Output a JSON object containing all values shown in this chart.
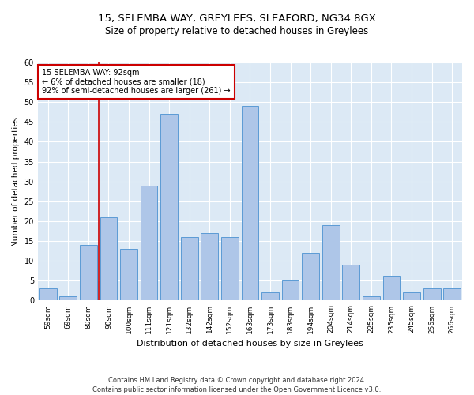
{
  "title1": "15, SELEMBA WAY, GREYLEES, SLEAFORD, NG34 8GX",
  "title2": "Size of property relative to detached houses in Greylees",
  "xlabel": "Distribution of detached houses by size in Greylees",
  "ylabel": "Number of detached properties",
  "footnote1": "Contains HM Land Registry data © Crown copyright and database right 2024.",
  "footnote2": "Contains public sector information licensed under the Open Government Licence v3.0.",
  "categories": [
    "59sqm",
    "69sqm",
    "80sqm",
    "90sqm",
    "100sqm",
    "111sqm",
    "121sqm",
    "132sqm",
    "142sqm",
    "152sqm",
    "163sqm",
    "173sqm",
    "183sqm",
    "194sqm",
    "204sqm",
    "214sqm",
    "225sqm",
    "235sqm",
    "245sqm",
    "256sqm",
    "266sqm"
  ],
  "values": [
    3,
    1,
    14,
    21,
    13,
    29,
    47,
    16,
    17,
    16,
    49,
    2,
    5,
    12,
    19,
    9,
    1,
    6,
    2,
    3,
    3
  ],
  "bar_color": "#aec6e8",
  "bar_edge_color": "#5b9bd5",
  "bg_color": "#dce9f5",
  "annotation_text": "15 SELEMBA WAY: 92sqm\n← 6% of detached houses are smaller (18)\n92% of semi-detached houses are larger (261) →",
  "annotation_box_color": "#ffffff",
  "annotation_border_color": "#cc0000",
  "vline_color": "#cc0000",
  "vline_x_index": 3,
  "ylim": [
    0,
    60
  ],
  "yticks": [
    0,
    5,
    10,
    15,
    20,
    25,
    30,
    35,
    40,
    45,
    50,
    55,
    60
  ]
}
